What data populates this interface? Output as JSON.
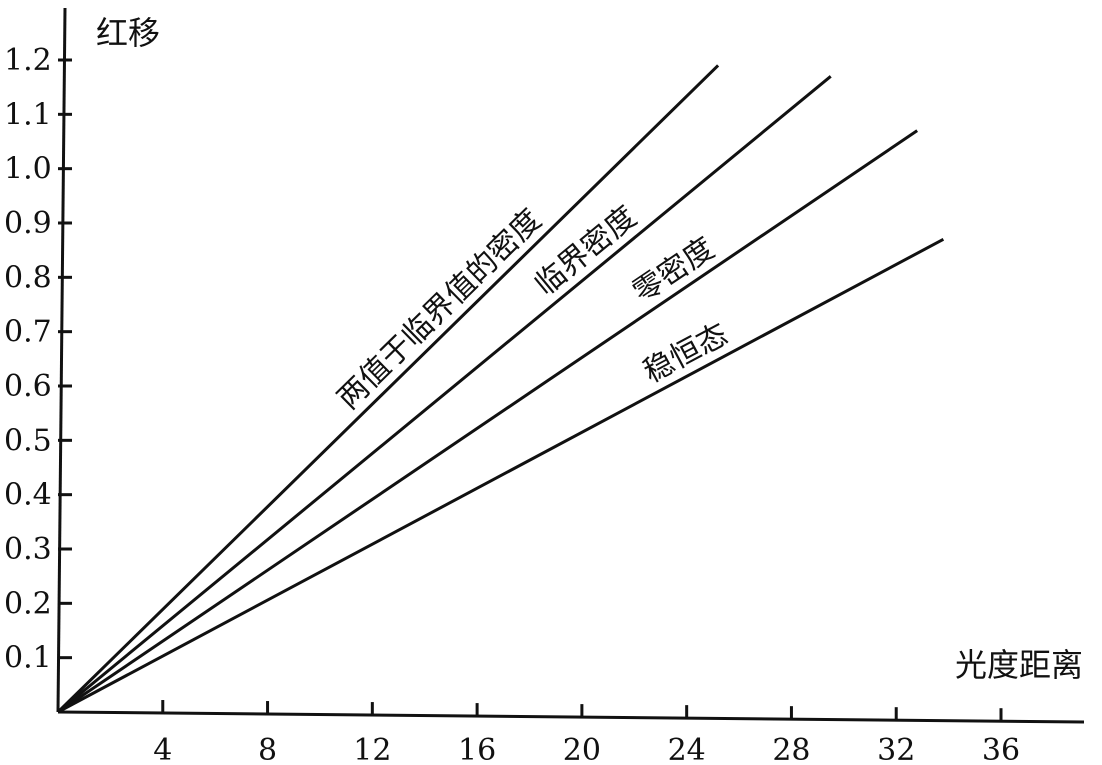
{
  "chart_data": {
    "type": "line",
    "xlabel": "光度距离",
    "ylabel": "红移",
    "xlim": [
      0,
      39
    ],
    "ylim": [
      0,
      1.2
    ],
    "x_ticks": [
      "4",
      "8",
      "12",
      "16",
      "20",
      "24",
      "28",
      "32",
      "36"
    ],
    "y_ticks": [
      "0.1",
      "0.2",
      "0.3",
      "0.4",
      "0.5",
      "0.6",
      "0.7",
      "0.8",
      "0.9",
      "1.0",
      "1.1",
      "1.2"
    ],
    "grid": false,
    "legend": "none",
    "series": [
      {
        "name": "两值于临界值的密度",
        "x": [
          0,
          25.2
        ],
        "y": [
          0,
          1.19
        ]
      },
      {
        "name": "临界密度",
        "x": [
          0,
          29.5
        ],
        "y": [
          0,
          1.17
        ]
      },
      {
        "name": "零密度",
        "x": [
          0,
          32.8
        ],
        "y": [
          0,
          1.07
        ]
      },
      {
        "name": "稳恒态",
        "x": [
          0,
          33.8
        ],
        "y": [
          0,
          0.87
        ]
      }
    ],
    "colors": {
      "line": "#111111",
      "axis": "#111111",
      "background": "#ffffff"
    }
  }
}
